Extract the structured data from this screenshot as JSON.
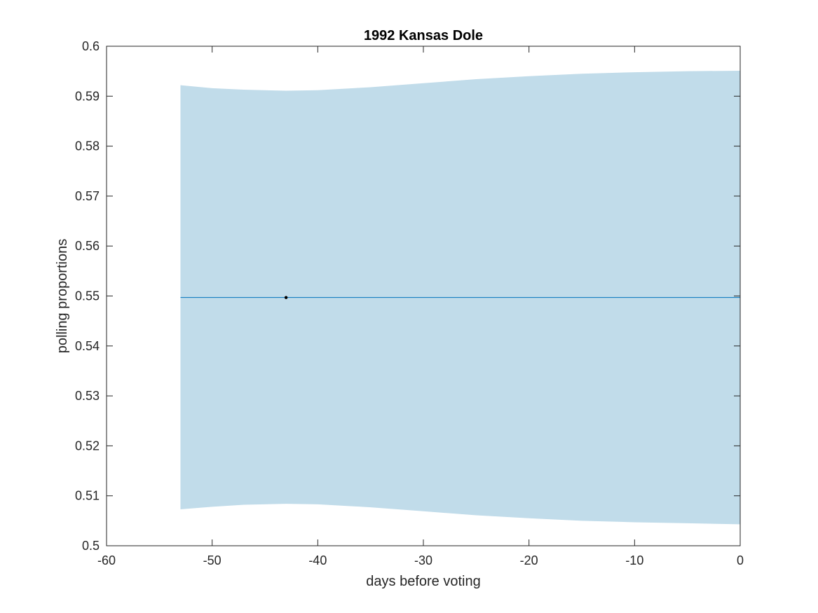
{
  "chart_data": {
    "type": "line",
    "title": "1992 Kansas Dole",
    "xlabel": "days before voting",
    "ylabel": "polling proportions",
    "xlim": [
      -60,
      0
    ],
    "ylim": [
      0.5,
      0.6
    ],
    "xticks": [
      -60,
      -50,
      -40,
      -30,
      -20,
      -10,
      0
    ],
    "yticks": [
      0.5,
      0.51,
      0.52,
      0.53,
      0.54,
      0.55,
      0.56,
      0.57,
      0.58,
      0.59,
      0.6
    ],
    "xtick_labels": [
      "-60",
      "-50",
      "-40",
      "-30",
      "-20",
      "-10",
      "0"
    ],
    "ytick_labels": [
      "0.5",
      "0.51",
      "0.52",
      "0.53",
      "0.54",
      "0.55",
      "0.56",
      "0.57",
      "0.58",
      "0.59",
      "0.6"
    ],
    "grid": false,
    "band": {
      "x": [
        -53,
        -50,
        -47,
        -43,
        -40,
        -35,
        -30,
        -25,
        -20,
        -15,
        -10,
        -5,
        0
      ],
      "upper": [
        0.5922,
        0.5916,
        0.5913,
        0.5911,
        0.5912,
        0.5918,
        0.5926,
        0.5934,
        0.594,
        0.5945,
        0.5948,
        0.595,
        0.5951
      ],
      "lower": [
        0.5073,
        0.5078,
        0.5082,
        0.5084,
        0.5083,
        0.5077,
        0.5069,
        0.5061,
        0.5055,
        0.505,
        0.5047,
        0.5045,
        0.5043
      ],
      "color": "#c1dcea"
    },
    "line": {
      "x": [
        -53,
        0
      ],
      "y": [
        0.5497,
        0.5497
      ],
      "color": "#0072bd"
    },
    "points": [
      {
        "x": -43,
        "y": 0.5497,
        "color": "#000000"
      }
    ]
  }
}
